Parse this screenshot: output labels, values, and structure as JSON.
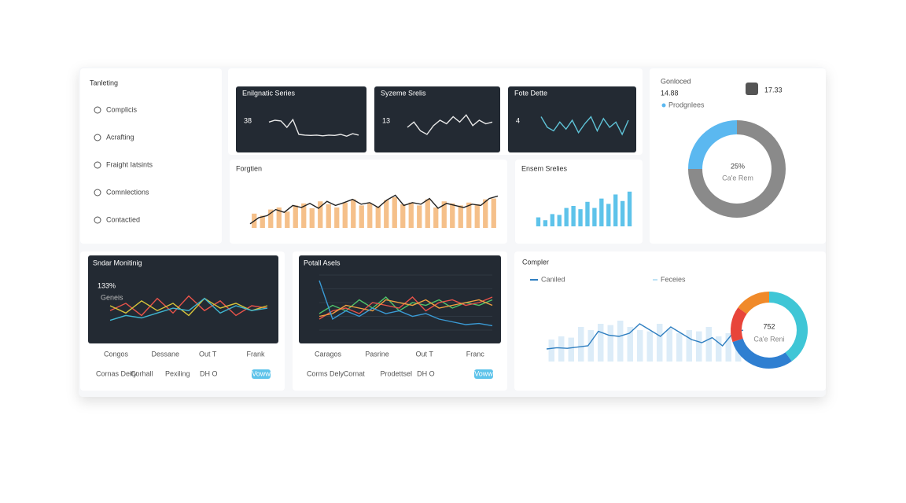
{
  "sidebar": {
    "title": "Tanleting",
    "items": [
      "Complicis",
      "Acrafting",
      "Fraight Iatsints",
      "Comnlections",
      "Contactied"
    ]
  },
  "cards": [
    {
      "title": "Enilgnatic Series",
      "value": 38,
      "chart": {
        "ylim": [
          0,
          100
        ],
        "series": [
          {
            "type": "line",
            "color": "#e8e8e8",
            "values": [
              55,
              60,
              58,
              40,
              62,
              20,
              18,
              17,
              18,
              16,
              18,
              17,
              20,
              15,
              22,
              18
            ]
          }
        ]
      }
    },
    {
      "title": "Syzeme Srelis",
      "value": 13,
      "chart": {
        "ylim": [
          0,
          100
        ],
        "series": [
          {
            "type": "line",
            "color": "#e8e8e8",
            "values": [
              40,
              55,
              30,
              20,
              45,
              60,
              50,
              70,
              55,
              75,
              45,
              60,
              50,
              55
            ]
          }
        ]
      }
    },
    {
      "title": "Fote Dette",
      "value": 4,
      "chart": {
        "ylim": [
          0,
          100
        ],
        "series": [
          {
            "type": "line",
            "color": "#5fc4d8",
            "values": [
              70,
              40,
              30,
              55,
              35,
              60,
              25,
              50,
              70,
              30,
              65,
              40,
              55,
              20,
              60
            ]
          }
        ]
      }
    }
  ],
  "forgtien": {
    "title": "Forgtien",
    "chart": {
      "ylim": [
        0,
        100
      ],
      "series": [
        {
          "type": "bar",
          "color": "#f5c08a",
          "values": [
            35,
            30,
            45,
            50,
            40,
            55,
            60,
            48,
            65,
            58,
            50,
            62,
            70,
            55,
            60,
            52,
            68,
            75,
            58,
            62,
            55,
            70,
            50,
            65,
            60,
            55,
            62,
            58,
            70,
            72
          ]
        },
        {
          "type": "line",
          "color": "#222222",
          "values": [
            10,
            25,
            30,
            45,
            38,
            55,
            50,
            60,
            48,
            65,
            55,
            62,
            70,
            58,
            62,
            50,
            68,
            80,
            55,
            62,
            58,
            72,
            48,
            60,
            55,
            50,
            58,
            55,
            72,
            78
          ]
        }
      ]
    }
  },
  "ensem": {
    "title": "Ensem Srelies",
    "chart": {
      "ylim": [
        0,
        100
      ],
      "series": [
        {
          "type": "bar",
          "color": "#5ec3ea",
          "values": [
            22,
            15,
            30,
            28,
            45,
            50,
            42,
            60,
            45,
            68,
            55,
            78,
            62,
            85
          ]
        }
      ]
    }
  },
  "summary": {
    "label": "Gonloced",
    "value": 14.88,
    "badge": 17.33,
    "legend": "Prodgnlees",
    "center_label": "25%",
    "center_sub": "Ca'e Rem",
    "chart": {
      "type": "donut",
      "values": [
        75,
        25
      ],
      "colors": [
        "#8a8a8a",
        "#5bb8f0"
      ]
    }
  },
  "sndar": {
    "title": "Sndar Monitinig",
    "value": "133%",
    "sub": "Geneis",
    "legend": [
      "Congos",
      "Dessane",
      "Out T",
      "Frank"
    ],
    "footer": [
      "Cornas Deity",
      "Corhall",
      "Pexiling",
      "DH O"
    ],
    "button": "Voww",
    "chart": {
      "ylim": [
        0,
        100
      ],
      "series": [
        {
          "type": "line",
          "color": "#e8534a",
          "values": [
            40,
            55,
            30,
            65,
            35,
            70,
            40,
            60,
            30,
            50,
            45
          ]
        },
        {
          "type": "line",
          "color": "#d7c43a",
          "values": [
            50,
            35,
            60,
            40,
            55,
            30,
            65,
            45,
            55,
            40,
            50
          ]
        },
        {
          "type": "line",
          "color": "#3fb5d0",
          "values": [
            20,
            30,
            25,
            35,
            45,
            40,
            65,
            35,
            50,
            40,
            45
          ]
        }
      ]
    }
  },
  "potall": {
    "title": "Potall Asels",
    "legend": [
      "Caragos",
      "Pasrine",
      "Out T",
      "Franc"
    ],
    "footer": [
      "Corms Dely",
      "Cornat",
      "Prodettsel",
      "DH O"
    ],
    "button": "Voww",
    "chart": {
      "ylim": [
        0,
        100
      ],
      "series": [
        {
          "type": "line",
          "color": "#4fc36a",
          "values": [
            30,
            45,
            35,
            55,
            40,
            60,
            35,
            50,
            45,
            55,
            40,
            50,
            45,
            55
          ]
        },
        {
          "type": "line",
          "color": "#e8534a",
          "values": [
            20,
            35,
            40,
            30,
            50,
            45,
            40,
            60,
            35,
            50,
            55,
            45,
            50,
            60
          ]
        },
        {
          "type": "line",
          "color": "#f0a040",
          "values": [
            25,
            30,
            45,
            40,
            35,
            55,
            50,
            45,
            55,
            40,
            45,
            50,
            55,
            45
          ]
        },
        {
          "type": "line",
          "color": "#3a9bd6",
          "values": [
            90,
            20,
            35,
            25,
            40,
            30,
            35,
            25,
            30,
            20,
            15,
            10,
            12,
            8
          ]
        }
      ]
    }
  },
  "compler": {
    "title": "Compler",
    "legend": [
      "Caniled",
      "Feceies"
    ],
    "center_label": "752",
    "center_sub": "Ca'e Reni",
    "chart": {
      "ylim": [
        0,
        100
      ],
      "series": [
        {
          "type": "bar",
          "color": "#dcecf8",
          "values": [
            35,
            40,
            38,
            55,
            50,
            60,
            58,
            65,
            55,
            50,
            48,
            60,
            52,
            45,
            50,
            48,
            55,
            40,
            45,
            50
          ]
        },
        {
          "type": "line",
          "color": "#2f7fc1",
          "values": [
            20,
            22,
            21,
            23,
            25,
            48,
            42,
            40,
            45,
            60,
            50,
            40,
            55,
            45,
            35,
            30,
            38,
            25,
            45,
            50
          ]
        }
      ]
    },
    "donut": {
      "type": "donut",
      "values": [
        40,
        30,
        15,
        15
      ],
      "colors": [
        "#3fc6d6",
        "#2f7fd1",
        "#e8453a",
        "#f08a2a"
      ]
    }
  }
}
